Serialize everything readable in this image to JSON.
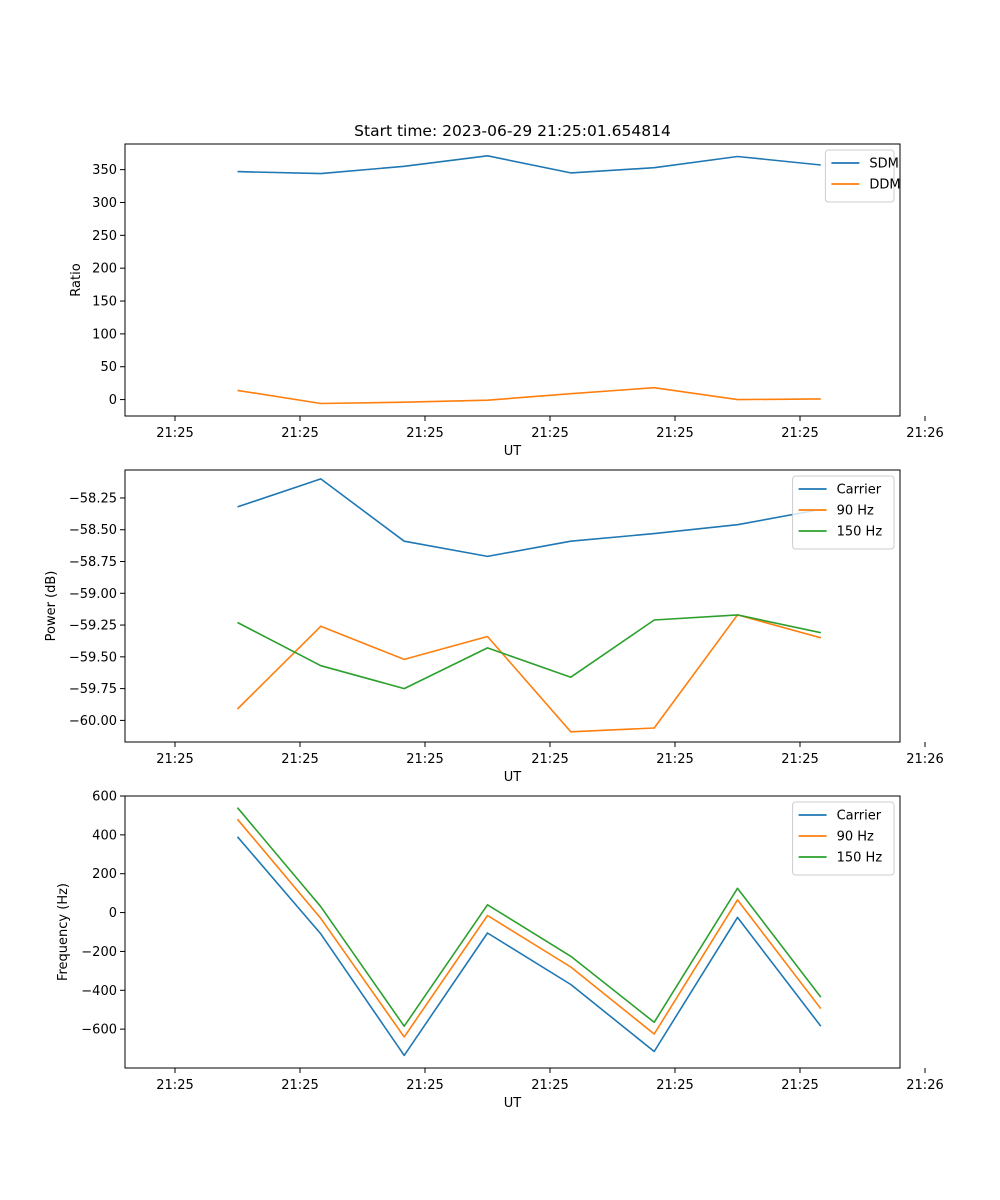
{
  "chart_data": [
    {
      "type": "line",
      "title": "Start time: 2023-06-29 21:25:01.654814",
      "xlabel": "UT",
      "ylabel": "Ratio",
      "xlim": [
        -0.6,
        8.7
      ],
      "ylim": [
        -25,
        389
      ],
      "x": [
        0.75,
        1.75,
        2.75,
        3.75,
        4.75,
        5.75,
        6.75,
        7.75
      ],
      "xticks": [
        0,
        1.5,
        3,
        4.5,
        6,
        7.5,
        9
      ],
      "xtick_labels": [
        "21:25",
        "21:25",
        "21:25",
        "21:25",
        "21:25",
        "21:25",
        "21:26"
      ],
      "yticks": [
        0,
        50,
        100,
        150,
        200,
        250,
        300,
        350
      ],
      "ytick_labels": [
        "0",
        "50",
        "100",
        "150",
        "200",
        "250",
        "300",
        "350"
      ],
      "legend": "top-right",
      "grid": false,
      "series": [
        {
          "name": "SDM",
          "color": "#1f77b4",
          "values": [
            347,
            344,
            355,
            371,
            345,
            353,
            370,
            357
          ]
        },
        {
          "name": "DDM",
          "color": "#ff7f0e",
          "values": [
            14,
            -6,
            -4,
            -1,
            9,
            18,
            0,
            1
          ]
        }
      ]
    },
    {
      "type": "line",
      "xlabel": "UT",
      "ylabel": "Power (dB)",
      "xlim": [
        -0.6,
        8.7
      ],
      "ylim": [
        -60.17,
        -58.03
      ],
      "x": [
        0.75,
        1.75,
        2.75,
        3.75,
        4.75,
        5.75,
        6.75,
        7.75
      ],
      "xticks": [
        0,
        1.5,
        3,
        4.5,
        6,
        7.5,
        9
      ],
      "xtick_labels": [
        "21:25",
        "21:25",
        "21:25",
        "21:25",
        "21:25",
        "21:25",
        "21:26"
      ],
      "yticks": [
        -60.0,
        -59.75,
        -59.5,
        -59.25,
        -59.0,
        -58.75,
        -58.5,
        -58.25
      ],
      "ytick_labels": [
        "−60.00",
        "−59.75",
        "−59.50",
        "−59.25",
        "−59.00",
        "−58.75",
        "−58.50",
        "−58.25"
      ],
      "legend": "top-right",
      "grid": false,
      "series": [
        {
          "name": "Carrier",
          "color": "#1f77b4",
          "values": [
            -58.32,
            -58.1,
            -58.59,
            -58.71,
            -58.59,
            -58.53,
            -58.46,
            -58.34
          ]
        },
        {
          "name": "90 Hz",
          "color": "#ff7f0e",
          "values": [
            -59.91,
            -59.26,
            -59.52,
            -59.34,
            -60.09,
            -60.06,
            -59.17,
            -59.35
          ]
        },
        {
          "name": "150 Hz",
          "color": "#2ca02c",
          "values": [
            -59.23,
            -59.57,
            -59.75,
            -59.43,
            -59.66,
            -59.21,
            -59.17,
            -59.31
          ]
        }
      ]
    },
    {
      "type": "line",
      "xlabel": "UT",
      "ylabel": "Frequency (Hz)",
      "xlim": [
        -0.6,
        8.7
      ],
      "ylim": [
        -800,
        600
      ],
      "x": [
        0.75,
        1.75,
        2.75,
        3.75,
        4.75,
        5.75,
        6.75,
        7.75
      ],
      "xticks": [
        0,
        1.5,
        3,
        4.5,
        6,
        7.5,
        9
      ],
      "xtick_labels": [
        "21:25",
        "21:25",
        "21:25",
        "21:25",
        "21:25",
        "21:25",
        "21:26"
      ],
      "yticks": [
        -600,
        -400,
        -200,
        0,
        200,
        400,
        600
      ],
      "ytick_labels": [
        "−600",
        "−400",
        "−200",
        "0",
        "200",
        "400",
        "600"
      ],
      "legend": "top-right",
      "grid": false,
      "series": [
        {
          "name": "Carrier",
          "color": "#1f77b4",
          "values": [
            390,
            -110,
            -735,
            -105,
            -370,
            -715,
            -25,
            -585
          ]
        },
        {
          "name": "90 Hz",
          "color": "#ff7f0e",
          "values": [
            480,
            -30,
            -640,
            -15,
            -280,
            -625,
            65,
            -495
          ]
        },
        {
          "name": "150 Hz",
          "color": "#2ca02c",
          "values": [
            540,
            30,
            -585,
            40,
            -225,
            -565,
            125,
            -435
          ]
        }
      ]
    }
  ]
}
